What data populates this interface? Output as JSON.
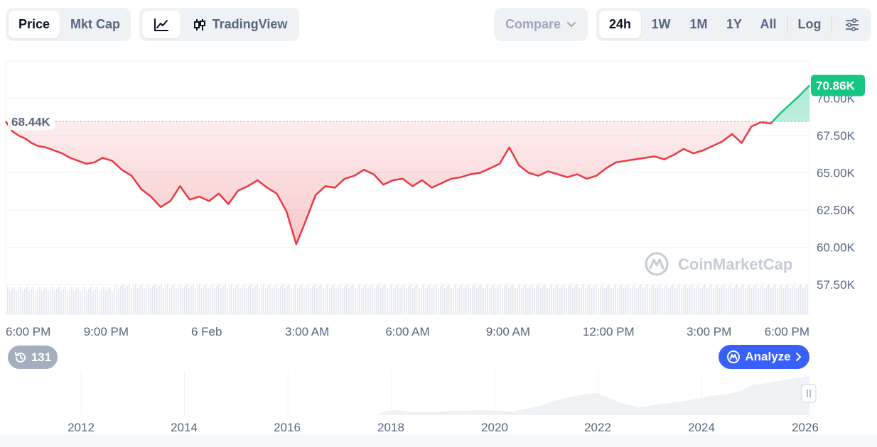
{
  "toolbar": {
    "price_label": "Price",
    "mktcap_label": "Mkt Cap",
    "tradingview_label": "TradingView",
    "compare_label": "Compare",
    "ranges": [
      "24h",
      "1W",
      "1M",
      "1Y",
      "All"
    ],
    "active_range": "24h",
    "log_label": "Log"
  },
  "chart": {
    "current_price": "70.86K",
    "open_price": "68.44K",
    "watermark": "CoinMarketCap",
    "colors": {
      "up": "#16c784",
      "down": "#ea3943",
      "accent": "#3861fb"
    }
  },
  "history": {
    "count": "131"
  },
  "analyze_label": "Analyze",
  "chart_data": {
    "type": "line",
    "title": "",
    "ylim": [
      55.5,
      72.5
    ],
    "y_ticks": [
      "57.50K",
      "60.00K",
      "62.50K",
      "65.00K",
      "67.50K",
      "70.00K"
    ],
    "x_ticks": [
      "6:00 PM",
      "9:00 PM",
      "6 Feb",
      "3:00 AM",
      "6:00 AM",
      "9:00 AM",
      "12:00 PM",
      "3:00 PM",
      "6:00 PM"
    ],
    "baseline": 68.44,
    "series": [
      {
        "x": [
          0,
          0.2,
          0.4,
          0.6,
          0.8,
          1,
          1.25,
          1.5,
          1.75,
          2,
          2.25,
          2.5,
          2.75,
          3,
          3.3,
          3.6,
          3.9,
          4.2,
          4.5,
          4.8,
          5.1,
          5.4,
          5.7,
          6,
          6.3,
          6.6,
          6.9,
          7.2,
          7.5,
          7.8,
          8.1,
          8.4,
          8.7,
          9,
          9.3,
          9.6,
          9.9,
          10.2,
          10.5,
          10.8,
          11.1,
          11.4,
          11.7,
          12,
          12.3,
          12.6,
          12.9,
          13.2,
          13.5,
          13.8,
          14.1,
          14.4,
          14.7,
          15,
          15.3,
          15.6,
          15.9,
          16.2,
          16.5,
          16.8,
          17.1,
          17.4,
          17.7,
          18,
          18.3,
          18.6,
          18.9,
          19.2,
          19.5,
          19.8,
          20.1,
          20.4,
          20.7,
          21,
          21.3,
          21.6,
          21.9,
          22.2,
          22.5,
          22.8,
          23.1,
          23.4,
          23.7,
          24,
          24.3,
          24.6,
          24.9
        ],
        "y": [
          68.45,
          67.8,
          67.5,
          67.3,
          67.0,
          66.8,
          66.7,
          66.5,
          66.3,
          66.0,
          65.8,
          65.6,
          65.7,
          66.0,
          65.8,
          65.2,
          64.8,
          63.9,
          63.4,
          62.7,
          63.1,
          64.1,
          63.2,
          63.4,
          63.1,
          63.6,
          62.9,
          63.8,
          64.1,
          64.5,
          64.0,
          63.6,
          62.4,
          60.2,
          61.8,
          63.5,
          64.1,
          64.0,
          64.6,
          64.8,
          65.2,
          64.9,
          64.2,
          64.5,
          64.6,
          64.1,
          64.5,
          64.0,
          64.3,
          64.6,
          64.7,
          64.9,
          65.0,
          65.3,
          65.6,
          66.7,
          65.5,
          65.0,
          64.8,
          65.1,
          64.9,
          64.7,
          64.9,
          64.6,
          64.8,
          65.3,
          65.7,
          65.8,
          65.9,
          66.0,
          66.1,
          65.9,
          66.2,
          66.6,
          66.3,
          66.5,
          66.8,
          67.1,
          67.6,
          67.0,
          68.1,
          68.4,
          68.3,
          69.0,
          69.6,
          70.2,
          70.86
        ]
      }
    ]
  }
}
